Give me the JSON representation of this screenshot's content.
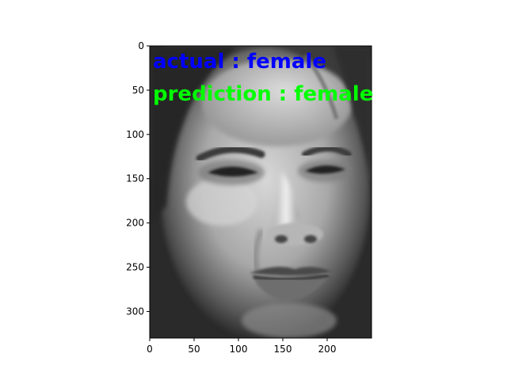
{
  "image": {
    "subject": "grayscale-face-photo",
    "x_range": [
      0,
      250
    ],
    "y_range": [
      0,
      330
    ]
  },
  "axes": {
    "x_ticks": [
      0,
      50,
      100,
      150,
      200
    ],
    "y_ticks": [
      0,
      50,
      100,
      150,
      200,
      250,
      300
    ]
  },
  "overlay": {
    "actual_text": "actual : female",
    "actual_color": "#0000ff",
    "prediction_text": "prediction : female",
    "prediction_color": "#00ff00"
  }
}
